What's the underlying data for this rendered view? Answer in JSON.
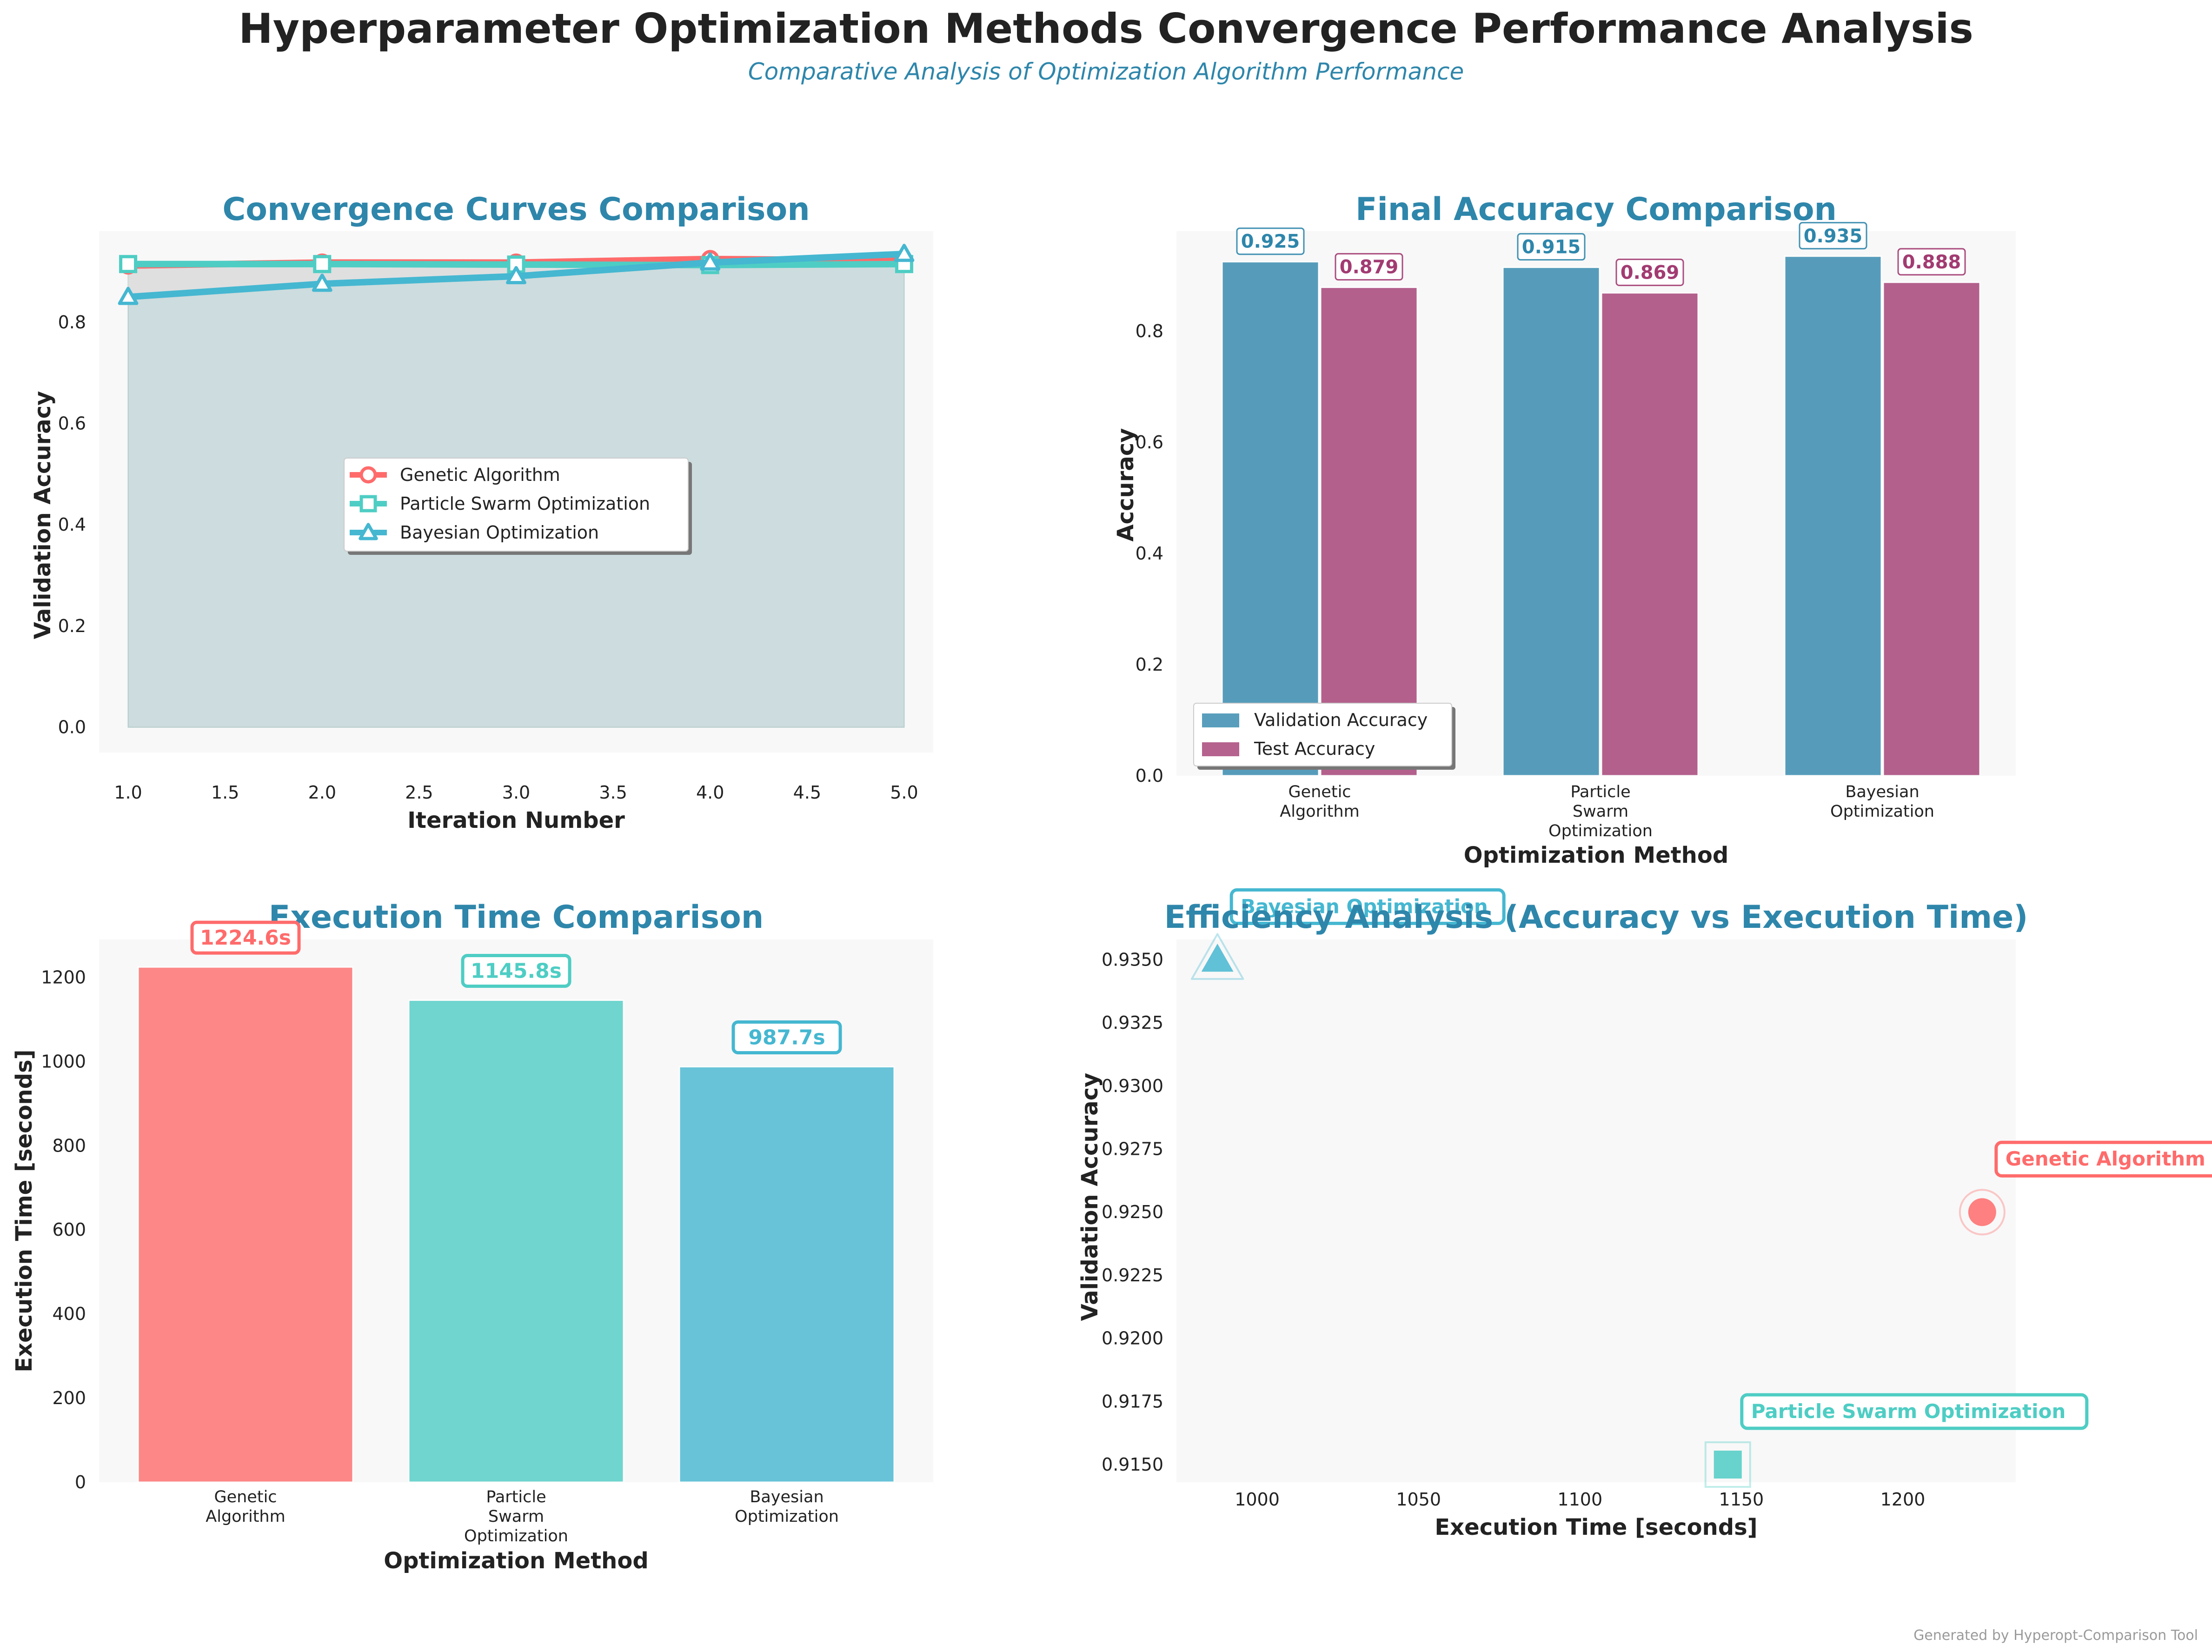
{
  "title": "Hyperparameter Optimization Methods Convergence Performance Analysis",
  "subtitle": "Comparative Analysis of Optimization Algorithm Performance",
  "footer": "Generated by Hyperopt-Comparison Tool",
  "colors": {
    "genetic": "#ff6b6b",
    "pso": "#4ecdc4",
    "bayesian": "#45b7d1",
    "validation_bar": "#2e86ab",
    "test_bar": "#a23b72",
    "panel_title": "#2e86ab",
    "panel_bg": "#f8f8f8",
    "fill_area": "#c6d8da"
  },
  "chart_data": [
    {
      "type": "line",
      "title": "Convergence Curves Comparison",
      "xlabel": "Iteration Number",
      "ylabel": "Validation Accuracy",
      "xlim": [
        0.85,
        5.15
      ],
      "ylim": [
        -0.05,
        0.98
      ],
      "xticks": [
        "1.0",
        "1.5",
        "2.0",
        "2.5",
        "3.0",
        "3.5",
        "4.0",
        "4.5",
        "5.0"
      ],
      "yticks": [
        "0.0",
        "0.2",
        "0.4",
        "0.6",
        "0.8"
      ],
      "x": [
        1,
        2,
        3,
        4,
        5
      ],
      "series": [
        {
          "name": "Genetic Algorithm",
          "values": [
            0.912,
            0.918,
            0.918,
            0.925,
            0.922
          ],
          "marker": "circle",
          "color": "#ff6b6b"
        },
        {
          "name": "Particle Swarm Optimization",
          "values": [
            0.915,
            0.915,
            0.914,
            0.913,
            0.915
          ],
          "marker": "square",
          "color": "#4ecdc4"
        },
        {
          "name": "Bayesian Optimization",
          "values": [
            0.85,
            0.876,
            0.891,
            0.918,
            0.935
          ],
          "marker": "triangle",
          "color": "#45b7d1"
        }
      ],
      "legend_position": "center"
    },
    {
      "type": "bar",
      "title": "Final Accuracy Comparison",
      "xlabel": "Optimization Method",
      "ylabel": "Accuracy",
      "ylim": [
        0,
        0.98
      ],
      "yticks": [
        "0.0",
        "0.2",
        "0.4",
        "0.6",
        "0.8"
      ],
      "categories": [
        [
          "Genetic",
          "Algorithm"
        ],
        [
          "Particle",
          "Swarm",
          "Optimization"
        ],
        [
          "Bayesian",
          "Optimization"
        ]
      ],
      "series": [
        {
          "name": "Validation Accuracy",
          "values": [
            0.925,
            0.915,
            0.935
          ],
          "labels": [
            "0.925",
            "0.915",
            "0.935"
          ],
          "color": "#2e86ab"
        },
        {
          "name": "Test Accuracy",
          "values": [
            0.879,
            0.869,
            0.888
          ],
          "labels": [
            "0.879",
            "0.869",
            "0.888"
          ],
          "color": "#a23b72"
        }
      ],
      "legend_position": "lower left"
    },
    {
      "type": "bar",
      "title": "Execution Time Comparison",
      "xlabel": "Optimization Method",
      "ylabel": "Execution Time [seconds]",
      "ylim": [
        0,
        1290
      ],
      "yticks": [
        "0",
        "200",
        "400",
        "600",
        "800",
        "1000",
        "1200"
      ],
      "categories": [
        [
          "Genetic",
          "Algorithm"
        ],
        [
          "Particle",
          "Swarm",
          "Optimization"
        ],
        [
          "Bayesian",
          "Optimization"
        ]
      ],
      "values": [
        1224.6,
        1145.8,
        987.7
      ],
      "labels": [
        "1224.6s",
        "1145.8s",
        "987.7s"
      ],
      "colors": [
        "#ff6b6b",
        "#4ecdc4",
        "#45b7d1"
      ]
    },
    {
      "type": "scatter",
      "title": "Efficiency Analysis (Accuracy vs Execution Time)",
      "xlabel": "Execution Time [seconds]",
      "ylabel": "Validation Accuracy",
      "xlim": [
        975,
        1235
      ],
      "ylim": [
        0.9143,
        0.9358
      ],
      "xticks": [
        "1000",
        "1050",
        "1100",
        "1150",
        "1200"
      ],
      "yticks": [
        "0.9150",
        "0.9175",
        "0.9200",
        "0.9225",
        "0.9250",
        "0.9275",
        "0.9300",
        "0.9325",
        "0.9350"
      ],
      "points": [
        {
          "name": "Genetic Algorithm",
          "x": 1224.6,
          "y": 0.925,
          "marker": "circle",
          "color": "#ff6b6b"
        },
        {
          "name": "Particle Swarm Optimization",
          "x": 1145.8,
          "y": 0.915,
          "marker": "square",
          "color": "#4ecdc4"
        },
        {
          "name": "Bayesian Optimization",
          "x": 987.7,
          "y": 0.935,
          "marker": "triangle",
          "color": "#45b7d1"
        }
      ]
    }
  ]
}
